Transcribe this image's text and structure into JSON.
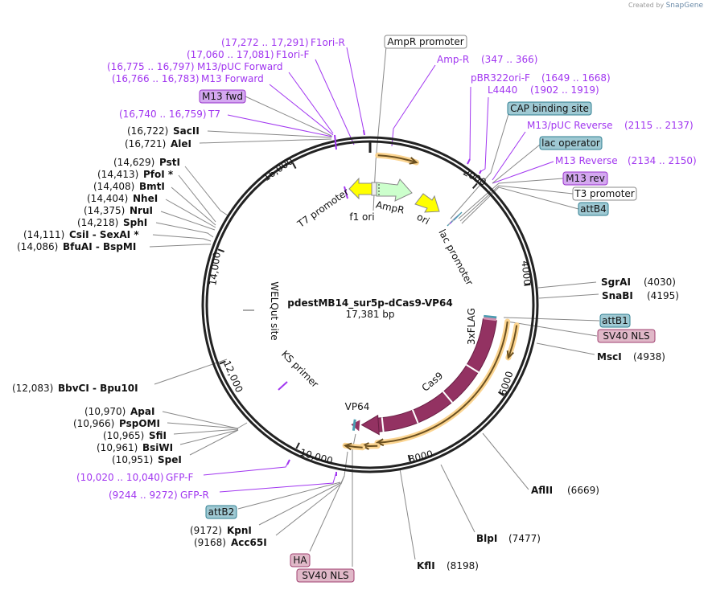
{
  "header": {
    "created_by": "Created by",
    "brand": "SnapGene"
  },
  "plasmid": {
    "name": "pdestMB14_sur5p-dCas9-VP64",
    "length": "17,381 bp"
  },
  "ticks": [
    "2000",
    "4000",
    "6000",
    "8000",
    "10,000",
    "12,000",
    "14,000",
    "16,000"
  ],
  "inner_features": [
    "T7 promoter",
    "f1 ori",
    "AmpR",
    "ori",
    "lac promoter",
    "3xFLAG",
    "Cas9",
    "VP64",
    "WELQut site",
    "KS primer"
  ],
  "enzymes": [
    {
      "name": "SacII",
      "pos": "(16,722)"
    },
    {
      "name": "AleI",
      "pos": "(16,721)"
    },
    {
      "name": "PstI",
      "pos": "(14,629)"
    },
    {
      "name": "PfoI *",
      "pos": "(14,413)"
    },
    {
      "name": "BmtI",
      "pos": "(14,408)"
    },
    {
      "name": "NheI",
      "pos": "(14,404)"
    },
    {
      "name": "NruI",
      "pos": "(14,375)"
    },
    {
      "name": "SphI",
      "pos": "(14,218)"
    },
    {
      "name": "CsiI  - SexAI *",
      "pos": "(14,111)"
    },
    {
      "name": "BfuAI  - BspMI",
      "pos": "(14,086)"
    },
    {
      "name": "SgrAI",
      "pos": "(4030)"
    },
    {
      "name": "SnaBI",
      "pos": "(4195)"
    },
    {
      "name": "MscI",
      "pos": "(4938)"
    },
    {
      "name": "AflII",
      "pos": "(6669)"
    },
    {
      "name": "BlpI",
      "pos": "(7477)"
    },
    {
      "name": "KflI",
      "pos": "(8198)"
    },
    {
      "name": "BbvCI  - Bpu10I",
      "pos": "(12,083)"
    },
    {
      "name": "ApaI",
      "pos": "(10,970)"
    },
    {
      "name": "PspOMI",
      "pos": "(10,966)"
    },
    {
      "name": "SfiI",
      "pos": "(10,965)"
    },
    {
      "name": "BsiWI",
      "pos": "(10,961)"
    },
    {
      "name": "SpeI",
      "pos": "(10,951)"
    },
    {
      "name": "KpnI",
      "pos": "(9172)"
    },
    {
      "name": "Acc65I",
      "pos": "(9168)"
    }
  ],
  "primers": [
    {
      "name": "F1ori-R",
      "range": "(17,272 .. 17,291)"
    },
    {
      "name": "F1ori-F",
      "range": "(17,060 .. 17,081)"
    },
    {
      "name": "M13/pUC Forward",
      "range": "(16,775 .. 16,797)"
    },
    {
      "name": "M13 Forward",
      "range": "(16,766 .. 16,783)"
    },
    {
      "name": "T7",
      "range": "(16,740 .. 16,759)"
    },
    {
      "name": "Amp-R",
      "range": "(347 .. 366)"
    },
    {
      "name": "pBR322ori-F",
      "range": "(1649 .. 1668)"
    },
    {
      "name": "L4440",
      "range": "(1902 .. 1919)"
    },
    {
      "name": "M13/pUC Reverse",
      "range": "(2115 .. 2137)"
    },
    {
      "name": "M13 Reverse",
      "range": "(2134 .. 2150)"
    },
    {
      "name": "GFP-F",
      "range": "(10,020 .. 10,040)"
    },
    {
      "name": "GFP-R",
      "range": "(9244 .. 9272)"
    }
  ],
  "boxed_features": [
    {
      "name": "M13 fwd"
    },
    {
      "name": "AmpR promoter"
    },
    {
      "name": "CAP binding site"
    },
    {
      "name": "lac operator"
    },
    {
      "name": "M13 rev"
    },
    {
      "name": "T3 promoter"
    },
    {
      "name": "attB4"
    },
    {
      "name": "attB1"
    },
    {
      "name": "SV40 NLS"
    },
    {
      "name": "attB2"
    },
    {
      "name": "HA"
    },
    {
      "name": "SV40 NLS"
    }
  ],
  "colors": {
    "primer": "#a136f0",
    "cds": "#933262",
    "orf": "#f5c77a",
    "misc_blue": "#9fc9d3",
    "nls_pink": "#e0b8c8",
    "primer_box": "#d4a8f0",
    "ori_yellow": "#ffff00",
    "ampr_green": "#ccffcc"
  }
}
